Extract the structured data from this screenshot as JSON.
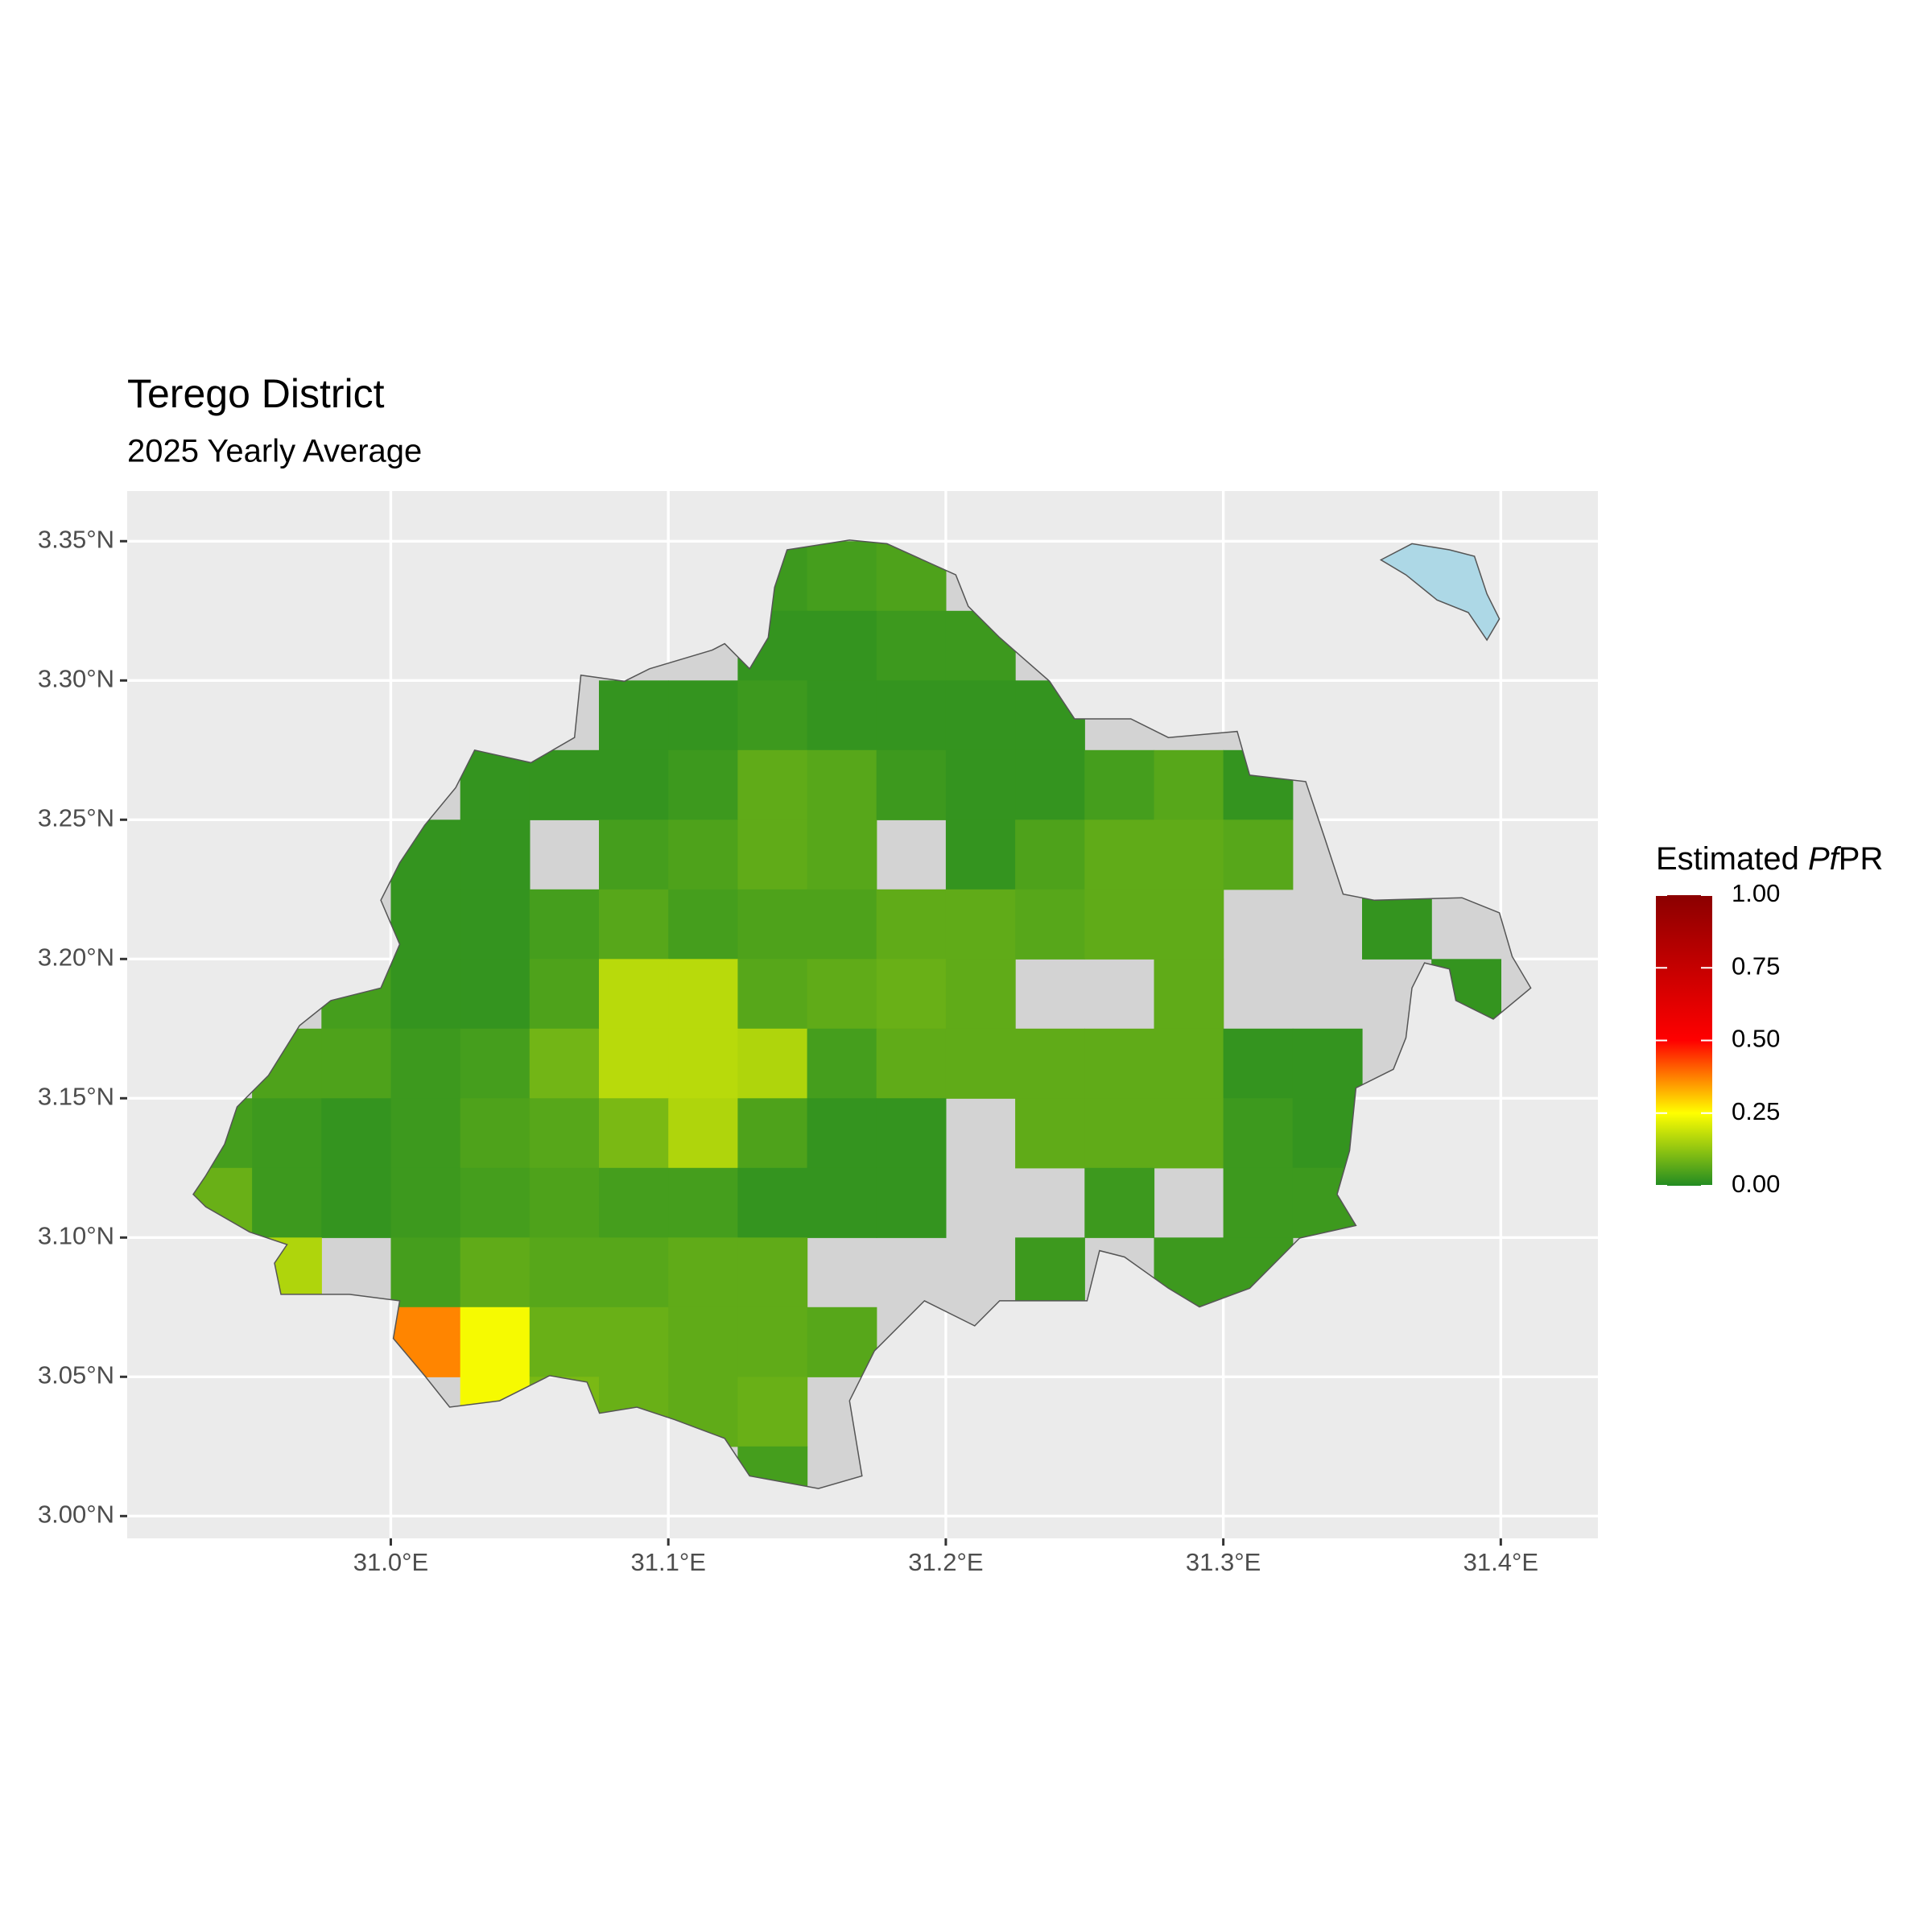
{
  "chart_data": {
    "type": "raster-map",
    "title": "Terego District",
    "subtitle": "2025 Yearly Average",
    "xlim": [
      30.905,
      31.435
    ],
    "ylim": [
      2.992,
      3.368
    ],
    "xticks": [
      {
        "value": 31.0,
        "label": "31.0°E"
      },
      {
        "value": 31.1,
        "label": "31.1°E"
      },
      {
        "value": 31.2,
        "label": "31.2°E"
      },
      {
        "value": 31.3,
        "label": "31.3°E"
      },
      {
        "value": 31.4,
        "label": "31.4°E"
      }
    ],
    "yticks": [
      {
        "value": 3.0,
        "label": "3.00°N"
      },
      {
        "value": 3.05,
        "label": "3.05°N"
      },
      {
        "value": 3.1,
        "label": "3.10°N"
      },
      {
        "value": 3.15,
        "label": "3.15°N"
      },
      {
        "value": 3.2,
        "label": "3.20°N"
      },
      {
        "value": 3.25,
        "label": "3.25°N"
      },
      {
        "value": 3.3,
        "label": "3.30°N"
      },
      {
        "value": 3.35,
        "label": "3.35°N"
      }
    ],
    "grid": true,
    "panel_color": "#ebebeb",
    "district_color": "#d3d3d3",
    "water_color": "#add8e6",
    "legend": {
      "title": [
        "Estimated ",
        "Pf",
        "PR"
      ],
      "clim": [
        0,
        1
      ],
      "ticks": [
        {
          "value": 0,
          "label": "0.00"
        },
        {
          "value": 0.25,
          "label": "0.25"
        },
        {
          "value": 0.5,
          "label": "0.50"
        },
        {
          "value": 0.75,
          "label": "0.75"
        },
        {
          "value": 1,
          "label": "1.00"
        }
      ],
      "colorscale": [
        {
          "value": 0,
          "color": "#228b22"
        },
        {
          "value": 0.25,
          "color": "#ffff00"
        },
        {
          "value": 0.5,
          "color": "#ff0000"
        },
        {
          "value": 1,
          "color": "#8b0000"
        }
      ]
    },
    "raster": {
      "cell": 0.025,
      "lon": [
        30.9375,
        30.9625,
        30.9875,
        31.0125,
        31.0375,
        31.0625,
        31.0875,
        31.1125,
        31.1375,
        31.1625,
        31.1875,
        31.2125,
        31.2375,
        31.2625,
        31.2875,
        31.3125,
        31.3375,
        31.3625,
        31.3875,
        31.4125
      ],
      "lat": [
        3.3375,
        3.3125,
        3.2875,
        3.2625,
        3.2375,
        3.2125,
        3.1875,
        3.1625,
        3.1375,
        3.1125,
        3.0875,
        3.0625,
        3.0375,
        3.0125
      ],
      "values": [
        [
          null,
          null,
          null,
          null,
          null,
          null,
          null,
          null,
          0.03,
          0.04,
          0.05,
          null,
          null,
          null,
          null,
          null,
          null,
          null,
          null,
          null
        ],
        [
          null,
          null,
          null,
          null,
          null,
          null,
          null,
          null,
          0.02,
          0.02,
          0.03,
          0.03,
          null,
          null,
          null,
          null,
          null,
          null,
          null,
          null
        ],
        [
          null,
          null,
          null,
          null,
          null,
          null,
          0.02,
          0.02,
          0.03,
          0.02,
          0.02,
          0.02,
          0.02,
          null,
          null,
          null,
          null,
          null,
          null,
          null
        ],
        [
          null,
          null,
          null,
          null,
          0.02,
          0.02,
          0.02,
          0.03,
          0.07,
          0.06,
          0.03,
          0.02,
          0.02,
          0.04,
          0.06,
          0.02,
          null,
          null,
          null,
          null
        ],
        [
          null,
          null,
          null,
          0.02,
          0.02,
          null,
          0.04,
          0.05,
          0.07,
          0.06,
          null,
          0.02,
          0.05,
          0.07,
          0.07,
          0.06,
          null,
          null,
          null,
          null
        ],
        [
          null,
          null,
          null,
          0.02,
          0.02,
          0.04,
          0.06,
          0.04,
          0.05,
          0.05,
          0.07,
          0.07,
          0.06,
          0.07,
          0.07,
          null,
          null,
          0.02,
          null,
          null
        ],
        [
          null,
          null,
          0.04,
          0.02,
          0.02,
          0.05,
          0.17,
          0.17,
          0.06,
          0.07,
          0.08,
          0.07,
          null,
          null,
          0.07,
          null,
          null,
          null,
          0.02,
          null
        ],
        [
          null,
          0.05,
          0.05,
          0.03,
          0.04,
          0.09,
          0.17,
          0.17,
          0.16,
          0.04,
          0.07,
          0.07,
          0.07,
          0.07,
          0.07,
          0.02,
          0.02,
          null,
          null,
          null
        ],
        [
          0.04,
          0.03,
          0.02,
          0.03,
          0.05,
          0.06,
          0.1,
          0.16,
          0.05,
          0.02,
          0.02,
          null,
          0.07,
          0.07,
          0.07,
          0.03,
          0.02,
          null,
          null,
          null
        ],
        [
          0.08,
          0.03,
          0.02,
          0.03,
          0.04,
          0.05,
          0.04,
          0.04,
          0.02,
          0.02,
          0.02,
          null,
          null,
          0.03,
          null,
          0.03,
          0.03,
          null,
          null,
          null
        ],
        [
          null,
          0.16,
          null,
          0.04,
          0.07,
          0.06,
          0.06,
          0.07,
          0.07,
          null,
          null,
          null,
          0.03,
          null,
          0.03,
          0.03,
          null,
          null,
          null,
          null
        ],
        [
          null,
          null,
          null,
          0.37,
          0.24,
          0.08,
          0.08,
          0.07,
          0.07,
          0.06,
          null,
          null,
          null,
          null,
          null,
          null,
          null,
          null,
          null,
          null
        ],
        [
          null,
          null,
          null,
          null,
          0.24,
          0.1,
          0.08,
          0.07,
          0.08,
          null,
          null,
          null,
          null,
          null,
          null,
          null,
          null,
          null,
          null,
          null
        ],
        [
          null,
          null,
          null,
          null,
          null,
          null,
          null,
          null,
          0.04,
          null,
          null,
          null,
          null,
          null,
          null,
          null,
          null,
          null,
          null,
          null
        ]
      ]
    },
    "boundary": {
      "lon": [
        31.1428,
        31.1653,
        31.1788,
        31.2036,
        31.2081,
        31.2194,
        31.2374,
        31.2464,
        31.2667,
        31.2802,
        31.305,
        31.3095,
        31.3297,
        31.3365,
        31.3432,
        31.3545,
        31.386,
        31.3995,
        31.4041,
        31.4108,
        31.3973,
        31.3838,
        31.3815,
        31.3725,
        31.368,
        31.3658,
        31.3613,
        31.3478,
        31.3455,
        31.341,
        31.3478,
        31.3275,
        31.3095,
        31.2914,
        31.2802,
        31.2644,
        31.2554,
        31.2509,
        31.2419,
        31.2194,
        31.2104,
        31.1923,
        31.1743,
        31.1653,
        31.1698,
        31.1541,
        31.1293,
        31.1203,
        31.1023,
        31.0887,
        31.0752,
        31.0707,
        31.0572,
        31.0392,
        31.0212,
        31.0122,
        31.0009,
        31.0032,
        30.9851,
        30.9604,
        30.9581,
        30.9626,
        30.9491,
        30.9333,
        30.9288,
        30.9333,
        30.9401,
        30.9446,
        30.9559,
        30.9671,
        30.9784,
        30.9964,
        31.0032,
        30.9964,
        31.0032,
        31.0122,
        31.0234,
        31.0302,
        31.0505,
        31.0662,
        31.0685,
        31.0842,
        31.0932,
        31.1158,
        31.1203,
        31.1293,
        31.136,
        31.1383
      ],
      "lat": [
        3.3469,
        3.3504,
        3.3491,
        3.3379,
        3.3266,
        3.3154,
        3.2997,
        3.2862,
        3.2862,
        3.2795,
        3.2817,
        3.266,
        3.2637,
        3.2435,
        3.2233,
        3.2211,
        3.222,
        3.2166,
        3.2009,
        3.1896,
        3.1784,
        3.1851,
        3.1964,
        3.1986,
        3.1896,
        3.1717,
        3.1604,
        3.1537,
        3.1312,
        3.1155,
        3.1043,
        3.0998,
        3.0818,
        3.0751,
        3.0818,
        3.093,
        3.0953,
        3.0773,
        3.0773,
        3.0773,
        3.0683,
        3.0773,
        3.0593,
        3.0414,
        3.0144,
        3.0099,
        3.0144,
        3.0279,
        3.0346,
        3.0391,
        3.0369,
        3.0481,
        3.0504,
        3.0414,
        3.0391,
        3.0504,
        3.0638,
        3.0773,
        3.0796,
        3.0796,
        3.0908,
        3.0975,
        3.102,
        3.111,
        3.1155,
        3.1222,
        3.1335,
        3.1469,
        3.1582,
        3.1761,
        3.1851,
        3.1896,
        3.2053,
        3.2211,
        3.2345,
        3.248,
        3.2615,
        3.275,
        3.2705,
        3.2795,
        3.3019,
        3.2997,
        3.3042,
        3.3109,
        3.3132,
        3.3042,
        3.3154,
        3.3334
      ]
    },
    "lake": {
      "lon": [
        31.3568,
        31.368,
        31.3815,
        31.3905,
        31.395,
        31.3995,
        31.395,
        31.3883,
        31.377,
        31.3658
      ],
      "lat": [
        3.3433,
        3.3491,
        3.3469,
        3.3446,
        3.3311,
        3.3221,
        3.3145,
        3.3244,
        3.3289,
        3.3379
      ]
    }
  }
}
